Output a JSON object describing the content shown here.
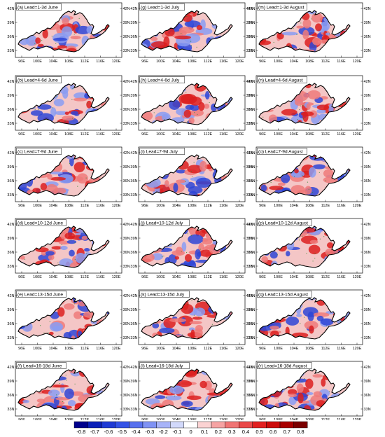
{
  "figure": {
    "columns": [
      "June",
      "July",
      "August"
    ],
    "lat_ticks": [
      "42N",
      "39N",
      "36N",
      "33N"
    ],
    "lon_ticks": [
      "96E",
      "100E",
      "104E",
      "108E",
      "112E",
      "116E",
      "120E"
    ],
    "panels": [
      {
        "letter": "a",
        "label": "(a) Lead=1-3d June"
      },
      {
        "letter": "g",
        "label": "(g) Lead=1-3d July"
      },
      {
        "letter": "m",
        "label": "(m) Lead=1-3d August"
      },
      {
        "letter": "b",
        "label": "(b) Lead=4-6d June"
      },
      {
        "letter": "h",
        "label": "(h) Lead=4-6d July"
      },
      {
        "letter": "n",
        "label": "(n) Lead=4-6d August"
      },
      {
        "letter": "c",
        "label": "(c) Lead=7-9d June"
      },
      {
        "letter": "i",
        "label": "(i) Lead=7-9d July"
      },
      {
        "letter": "o",
        "label": "(o) Lead=7-9d August"
      },
      {
        "letter": "d",
        "label": "(d) Lead=10-12d June"
      },
      {
        "letter": "j",
        "label": "(j) Lead=10-12d July"
      },
      {
        "letter": "p",
        "label": "(p) Lead=10-12d August"
      },
      {
        "letter": "e",
        "label": "(e) Lead=13-15d June"
      },
      {
        "letter": "k",
        "label": "(k) Lead=13-15d July"
      },
      {
        "letter": "q",
        "label": "(q) Lead=13-15d August"
      },
      {
        "letter": "f",
        "label": "(f) Lead=16-18d June"
      },
      {
        "letter": "l",
        "label": "(l) Lead=16-18d July"
      },
      {
        "letter": "r",
        "label": "(r) Lead=16-18d August"
      }
    ]
  },
  "colorbar": {
    "labels": [
      "-0.8",
      "-0.7",
      "-0.6",
      "-0.5",
      "-0.4",
      "-0.3",
      "-0.2",
      "-0.1",
      "0",
      "0.1",
      "0.2",
      "0.3",
      "0.4",
      "0.5",
      "0.6",
      "0.7",
      "0.8"
    ],
    "colors": [
      "#00008c",
      "#0a1fb8",
      "#1f3ad4",
      "#3352e6",
      "#5770ee",
      "#7f92f4",
      "#a7b3f8",
      "#d2d9fb",
      "#ffffff",
      "#fbd2d2",
      "#f6a3a3",
      "#f07474",
      "#ea4848",
      "#e21f1f",
      "#cc0a0a",
      "#a80000",
      "#7a0000"
    ]
  },
  "palette": {
    "negative": "#2e45d6",
    "positive": "#dc1e1e",
    "hatch": "#2e8b2e",
    "outline": "#000000"
  }
}
